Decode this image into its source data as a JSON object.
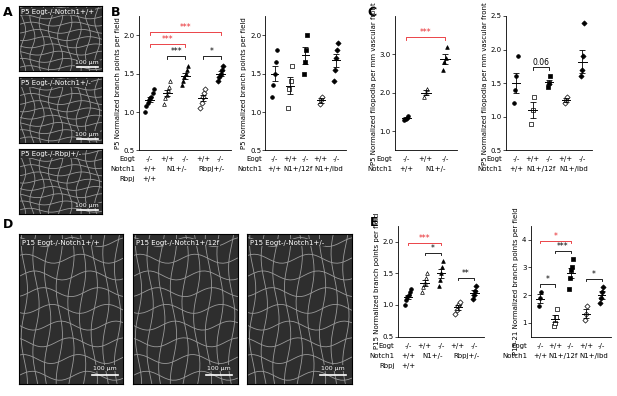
{
  "chart_data": [
    {
      "type": "image",
      "panel": "A",
      "images": [
        {
          "label": "P5 Eogt-/-Notch1+/+",
          "scale_bar": "100 µm"
        },
        {
          "label": "P5 Eogt-/-Notch1+/-",
          "scale_bar": "100 µm"
        },
        {
          "label": "P5 Eogt-/-Rbpj+/-",
          "scale_bar": "100 µm"
        }
      ]
    },
    {
      "type": "scatter",
      "panel": "B",
      "y_label": "P5 Normalized branch points per field",
      "ylim": [
        0.5,
        2.25
      ],
      "yticks": [
        0.5,
        1.0,
        1.5,
        2.0
      ],
      "genotype_rows": [
        {
          "label": "Eogt",
          "labels": [
            "-/-",
            "+/+",
            "-/-",
            "+/+",
            "-/-"
          ]
        },
        {
          "label": "Notch1",
          "groups": [
            {
              "label": "+/+",
              "members": [
                0
              ]
            },
            {
              "label": "N1+/-",
              "members": [
                1,
                2
              ]
            },
            {
              "label": "Rbpj+/-",
              "members": [
                3,
                4
              ]
            }
          ]
        },
        {
          "label": "Rbpj",
          "groups": [
            {
              "label": "+/+",
              "members": [
                0
              ]
            }
          ]
        }
      ],
      "series": [
        {
          "marker": "circle",
          "values": [
            1.0,
            1.08,
            1.12,
            1.15,
            1.18,
            1.2,
            1.25,
            1.3
          ],
          "mean": 1.16,
          "error": 0.03
        },
        {
          "marker": "triangle_open",
          "values": [
            1.1,
            1.18,
            1.22,
            1.28,
            1.33,
            1.4
          ],
          "mean": 1.25,
          "error": 0.04
        },
        {
          "marker": "triangle",
          "values": [
            1.35,
            1.4,
            1.45,
            1.5,
            1.55,
            1.6
          ],
          "mean": 1.47,
          "error": 0.04
        },
        {
          "marker": "diamond_open",
          "values": [
            1.05,
            1.12,
            1.2,
            1.25,
            1.3
          ],
          "mean": 1.18,
          "error": 0.04
        },
        {
          "marker": "diamond",
          "values": [
            1.4,
            1.45,
            1.5,
            1.55,
            1.6
          ],
          "mean": 1.5,
          "error": 0.03
        }
      ],
      "significance": [
        {
          "from": 0,
          "to": 4,
          "label": "***",
          "color": "#e8262b"
        },
        {
          "from": 0,
          "to": 2,
          "label": "***",
          "color": "#e8262b"
        },
        {
          "from": 1,
          "to": 2,
          "label": "***",
          "color": "#000000"
        },
        {
          "from": 3,
          "to": 4,
          "label": "*",
          "color": "#000000"
        }
      ]
    },
    {
      "type": "scatter",
      "y_label": "P5 Normalized branch points per field",
      "ylim": [
        0.5,
        2.25
      ],
      "yticks": [
        0.5,
        1.0,
        1.5,
        2.0
      ],
      "genotype_rows": [
        {
          "label": "Eogt",
          "labels": [
            "-/-",
            "+/+",
            "-/-",
            "+/+",
            "-/-"
          ]
        },
        {
          "label": "Notch1",
          "groups": [
            {
              "label": "+/+",
              "members": [
                0
              ]
            },
            {
              "label": "N1+/12f",
              "members": [
                1,
                2
              ]
            },
            {
              "label": "N1+/lbd",
              "members": [
                3,
                4
              ]
            }
          ]
        }
      ],
      "series": [
        {
          "marker": "circle",
          "values": [
            1.2,
            1.35,
            1.5,
            1.65,
            1.8
          ],
          "mean": 1.5,
          "error": 0.1
        },
        {
          "marker": "square_open",
          "values": [
            1.05,
            1.3,
            1.4,
            1.6
          ],
          "mean": 1.34,
          "error": 0.11
        },
        {
          "marker": "square",
          "values": [
            1.5,
            1.65,
            1.8,
            2.0
          ],
          "mean": 1.74,
          "error": 0.11
        },
        {
          "marker": "diamond_open",
          "values": [
            1.1,
            1.15,
            1.2
          ],
          "mean": 1.15,
          "error": 0.03
        },
        {
          "marker": "diamond",
          "values": [
            1.4,
            1.55,
            1.7,
            1.8,
            1.9
          ],
          "mean": 1.67,
          "error": 0.09
        }
      ],
      "significance": []
    },
    {
      "type": "scatter",
      "panel": "C",
      "y_label": "P5 Normalized filopodia per mm vascular front",
      "ylim": [
        0.5,
        4.0
      ],
      "yticks": [
        1.0,
        2.0,
        3.0
      ],
      "genotype_rows": [
        {
          "label": "Eogt",
          "labels": [
            "-/-",
            "+/+",
            "-/-"
          ]
        },
        {
          "label": "Notch1",
          "groups": [
            {
              "label": "+/+",
              "members": [
                0
              ]
            },
            {
              "label": "N1+/-",
              "members": [
                1,
                2
              ]
            }
          ]
        }
      ],
      "series": [
        {
          "marker": "circle",
          "values": [
            1.28,
            1.32,
            1.35,
            1.4
          ],
          "mean": 1.34,
          "error": 0.03
        },
        {
          "marker": "triangle_open",
          "values": [
            1.9,
            2.0,
            2.1
          ],
          "mean": 2.0,
          "error": 0.06
        },
        {
          "marker": "triangle",
          "values": [
            2.6,
            2.8,
            2.9,
            3.2
          ],
          "mean": 2.88,
          "error": 0.13
        }
      ],
      "significance": [
        {
          "from": 0,
          "to": 2,
          "label": "***",
          "color": "#e8262b"
        }
      ]
    },
    {
      "type": "scatter",
      "y_label": "P5 Normalized filopodia per mm vascular front",
      "ylim": [
        0.5,
        2.5
      ],
      "yticks": [
        0.5,
        1.0,
        1.5,
        2.0,
        2.5
      ],
      "genotype_rows": [
        {
          "label": "Eogt",
          "labels": [
            "-/-",
            "+/+",
            "-/-",
            "+/+",
            "-/-"
          ]
        },
        {
          "label": "Notch1",
          "groups": [
            {
              "label": "+/+",
              "members": [
                0
              ]
            },
            {
              "label": "N1+/12f",
              "members": [
                1,
                2
              ]
            },
            {
              "label": "N1+/lbd",
              "members": [
                3,
                4
              ]
            }
          ]
        }
      ],
      "series": [
        {
          "marker": "circle",
          "values": [
            1.2,
            1.4,
            1.6,
            1.9
          ],
          "mean": 1.5,
          "error": 0.15
        },
        {
          "marker": "square_open",
          "values": [
            0.9,
            1.1,
            1.3
          ],
          "mean": 1.1,
          "error": 0.12
        },
        {
          "marker": "square",
          "values": [
            1.45,
            1.5,
            1.6
          ],
          "mean": 1.52,
          "error": 0.03
        },
        {
          "marker": "diamond_open",
          "values": [
            1.2,
            1.25,
            1.3
          ],
          "mean": 1.25,
          "error": 0.03
        },
        {
          "marker": "diamond",
          "values": [
            1.6,
            1.7,
            1.9,
            2.4
          ],
          "mean": 1.82,
          "error": 0.17
        }
      ],
      "significance": [
        {
          "from": 1,
          "to": 2,
          "label": "0.06",
          "color": "#000000"
        }
      ]
    },
    {
      "type": "image",
      "panel": "D",
      "images": [
        {
          "label": "P15 Eogt-/-Notch1+/+",
          "scale_bar": "100 µm"
        },
        {
          "label": "P15 Eogt-/-Notch1+/12f",
          "scale_bar": "100 µm"
        },
        {
          "label": "P15 Eogt-/-Notch1+/-",
          "scale_bar": "100 µm"
        }
      ]
    },
    {
      "type": "scatter",
      "panel": "E",
      "y_label": "P15 Normalized branch points per field",
      "ylim": [
        0.5,
        2.25
      ],
      "yticks": [
        0.5,
        1.0,
        1.5,
        2.0
      ],
      "genotype_rows": [
        {
          "label": "Eogt",
          "labels": [
            "-/-",
            "+/+",
            "-/-",
            "+/+",
            "-/-"
          ]
        },
        {
          "label": "Notch1",
          "groups": [
            {
              "label": "+/+",
              "members": [
                0
              ]
            },
            {
              "label": "N1+/-",
              "members": [
                1,
                2
              ]
            },
            {
              "label": "Rbpj+/-",
              "members": [
                3,
                4
              ]
            }
          ]
        },
        {
          "label": "Rbpj",
          "groups": [
            {
              "label": "+/+",
              "members": [
                0
              ]
            }
          ]
        }
      ],
      "series": [
        {
          "marker": "circle",
          "values": [
            1.0,
            1.08,
            1.12,
            1.15,
            1.2,
            1.25
          ],
          "mean": 1.13,
          "error": 0.03
        },
        {
          "marker": "triangle_open",
          "values": [
            1.2,
            1.28,
            1.35,
            1.42,
            1.5
          ],
          "mean": 1.35,
          "error": 0.05
        },
        {
          "marker": "triangle",
          "values": [
            1.3,
            1.4,
            1.5,
            1.6,
            1.7
          ],
          "mean": 1.5,
          "error": 0.07
        },
        {
          "marker": "diamond_open",
          "values": [
            0.85,
            0.92,
            0.98,
            1.02,
            1.05
          ],
          "mean": 0.96,
          "error": 0.04
        },
        {
          "marker": "diamond",
          "values": [
            1.1,
            1.15,
            1.22,
            1.3
          ],
          "mean": 1.19,
          "error": 0.04
        }
      ],
      "significance": [
        {
          "from": 0,
          "to": 2,
          "label": "***",
          "color": "#e8262b"
        },
        {
          "from": 1,
          "to": 2,
          "label": "*",
          "color": "#000000"
        },
        {
          "from": 3,
          "to": 4,
          "label": "**",
          "color": "#000000"
        }
      ]
    },
    {
      "type": "scatter",
      "y_label": "P15-21 Normalized branch points per field",
      "ylim": [
        0.5,
        4.5
      ],
      "yticks": [
        1,
        2,
        3,
        4
      ],
      "genotype_rows": [
        {
          "label": "Eogt",
          "labels": [
            "-/-",
            "+/+",
            "-/-",
            "+/+",
            "-/-"
          ]
        },
        {
          "label": "Notch1",
          "groups": [
            {
              "label": "+/+",
              "members": [
                0
              ]
            },
            {
              "label": "N1+/12f",
              "members": [
                1,
                2
              ]
            },
            {
              "label": "N1+/lbd",
              "members": [
                3,
                4
              ]
            }
          ]
        }
      ],
      "series": [
        {
          "marker": "circle",
          "values": [
            1.6,
            1.9,
            2.1
          ],
          "mean": 1.87,
          "error": 0.15
        },
        {
          "marker": "square_open",
          "values": [
            0.9,
            1.0,
            1.2,
            1.5
          ],
          "mean": 1.15,
          "error": 0.13
        },
        {
          "marker": "square",
          "values": [
            2.2,
            2.6,
            2.9,
            3.0,
            3.3
          ],
          "mean": 2.8,
          "error": 0.19
        },
        {
          "marker": "diamond_open",
          "values": [
            1.1,
            1.3,
            1.6
          ],
          "mean": 1.33,
          "error": 0.15
        },
        {
          "marker": "diamond",
          "values": [
            1.7,
            1.9,
            2.1,
            2.3
          ],
          "mean": 2.0,
          "error": 0.13
        }
      ],
      "significance": [
        {
          "from": 0,
          "to": 1,
          "label": "*",
          "color": "#000000"
        },
        {
          "from": 0,
          "to": 2,
          "label": "*",
          "color": "#e8262b"
        },
        {
          "from": 1,
          "to": 2,
          "label": "***",
          "color": "#000000"
        },
        {
          "from": 3,
          "to": 4,
          "label": "*",
          "color": "#000000"
        }
      ]
    }
  ]
}
